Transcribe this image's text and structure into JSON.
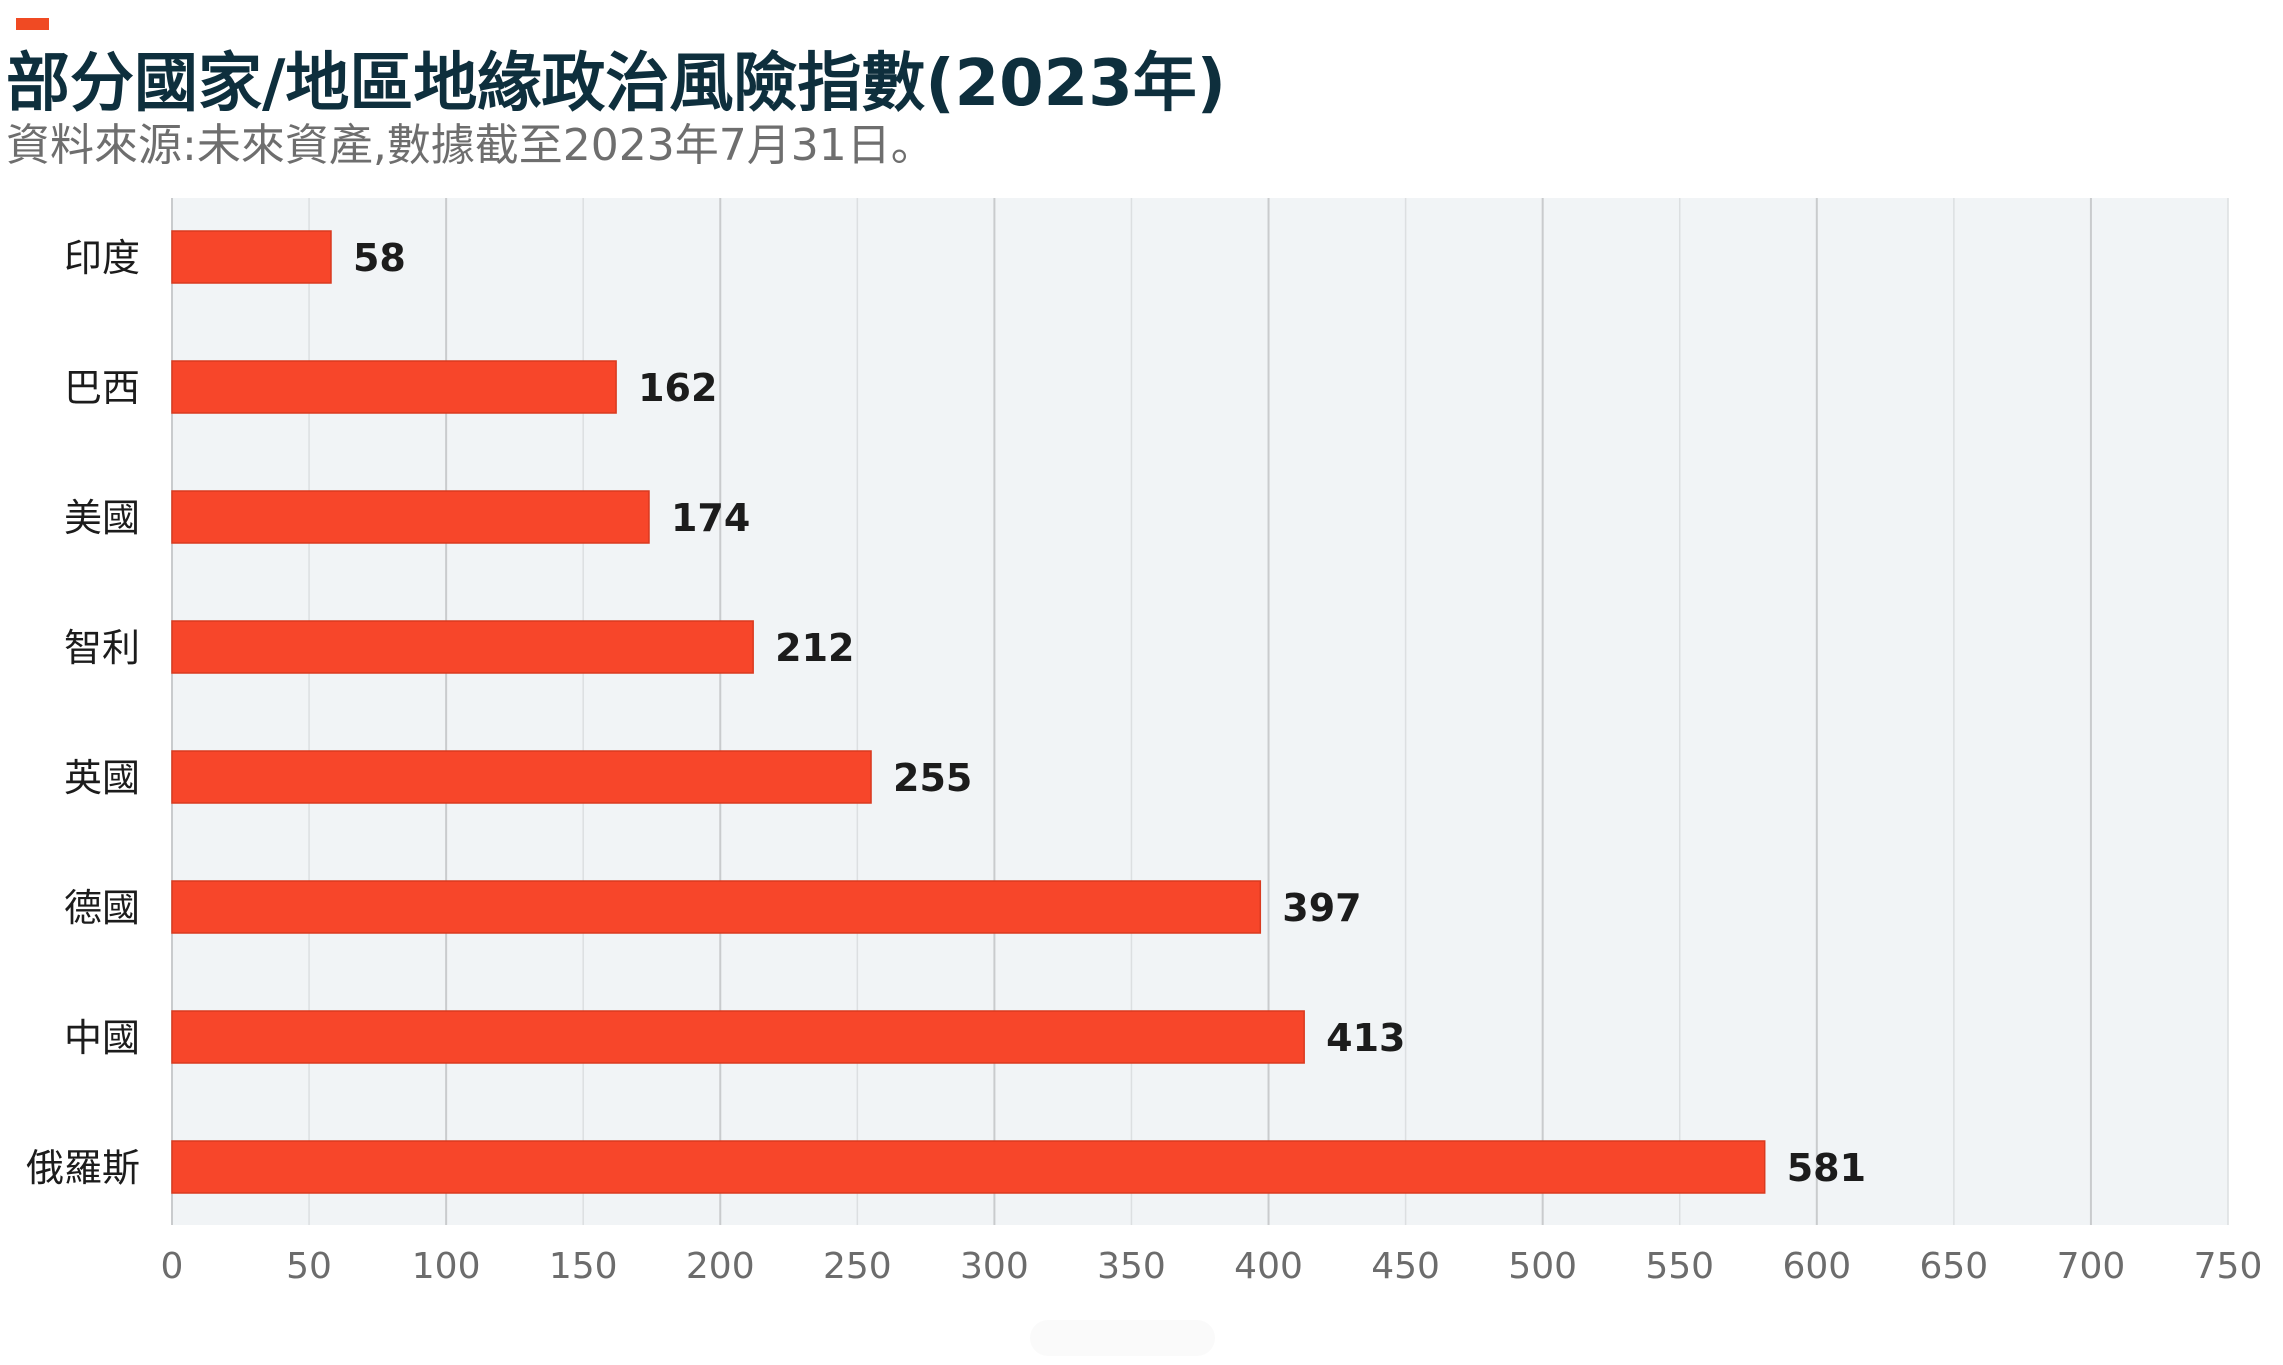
{
  "header": {
    "title": "部分國家/地區地緣政治風險指數(2023年)",
    "subtitle": "資料來源:未來資產,數據截至2023年7月31日。"
  },
  "colors": {
    "bar": "#f7462a",
    "bar_edge": "#d93a1f",
    "plot_background": "#f1f4f6",
    "grid_major": "#c9cbcd",
    "grid_minor": "#dcdfe1",
    "title": "#0e2f3d",
    "label": "#1c1c1c",
    "tick": "#6c6c6c",
    "accent": "#f04a23"
  },
  "chart_data": {
    "type": "bar",
    "orientation": "horizontal",
    "title": "部分國家/地區地緣政治風險指數(2023年)",
    "subtitle": "資料來源:未來資產,數據截至2023年7月31日。",
    "xlabel": "",
    "ylabel": "",
    "categories": [
      "印度",
      "巴西",
      "美國",
      "智利",
      "英國",
      "德國",
      "中國",
      "俄羅斯"
    ],
    "values": [
      58,
      162,
      174,
      212,
      255,
      397,
      413,
      581
    ],
    "data_labels": [
      "58",
      "162",
      "174",
      "212",
      "255",
      "397",
      "413",
      "581"
    ],
    "xlim": [
      0,
      750
    ],
    "xticks": [
      0,
      50,
      100,
      150,
      200,
      250,
      300,
      350,
      400,
      450,
      500,
      550,
      600,
      650,
      700,
      750
    ],
    "xtick_labels": [
      "0",
      "50",
      "100",
      "150",
      "200",
      "250",
      "300",
      "350",
      "400",
      "450",
      "500",
      "550",
      "600",
      "650",
      "700",
      "750"
    ],
    "grid": true,
    "legend": "none"
  }
}
